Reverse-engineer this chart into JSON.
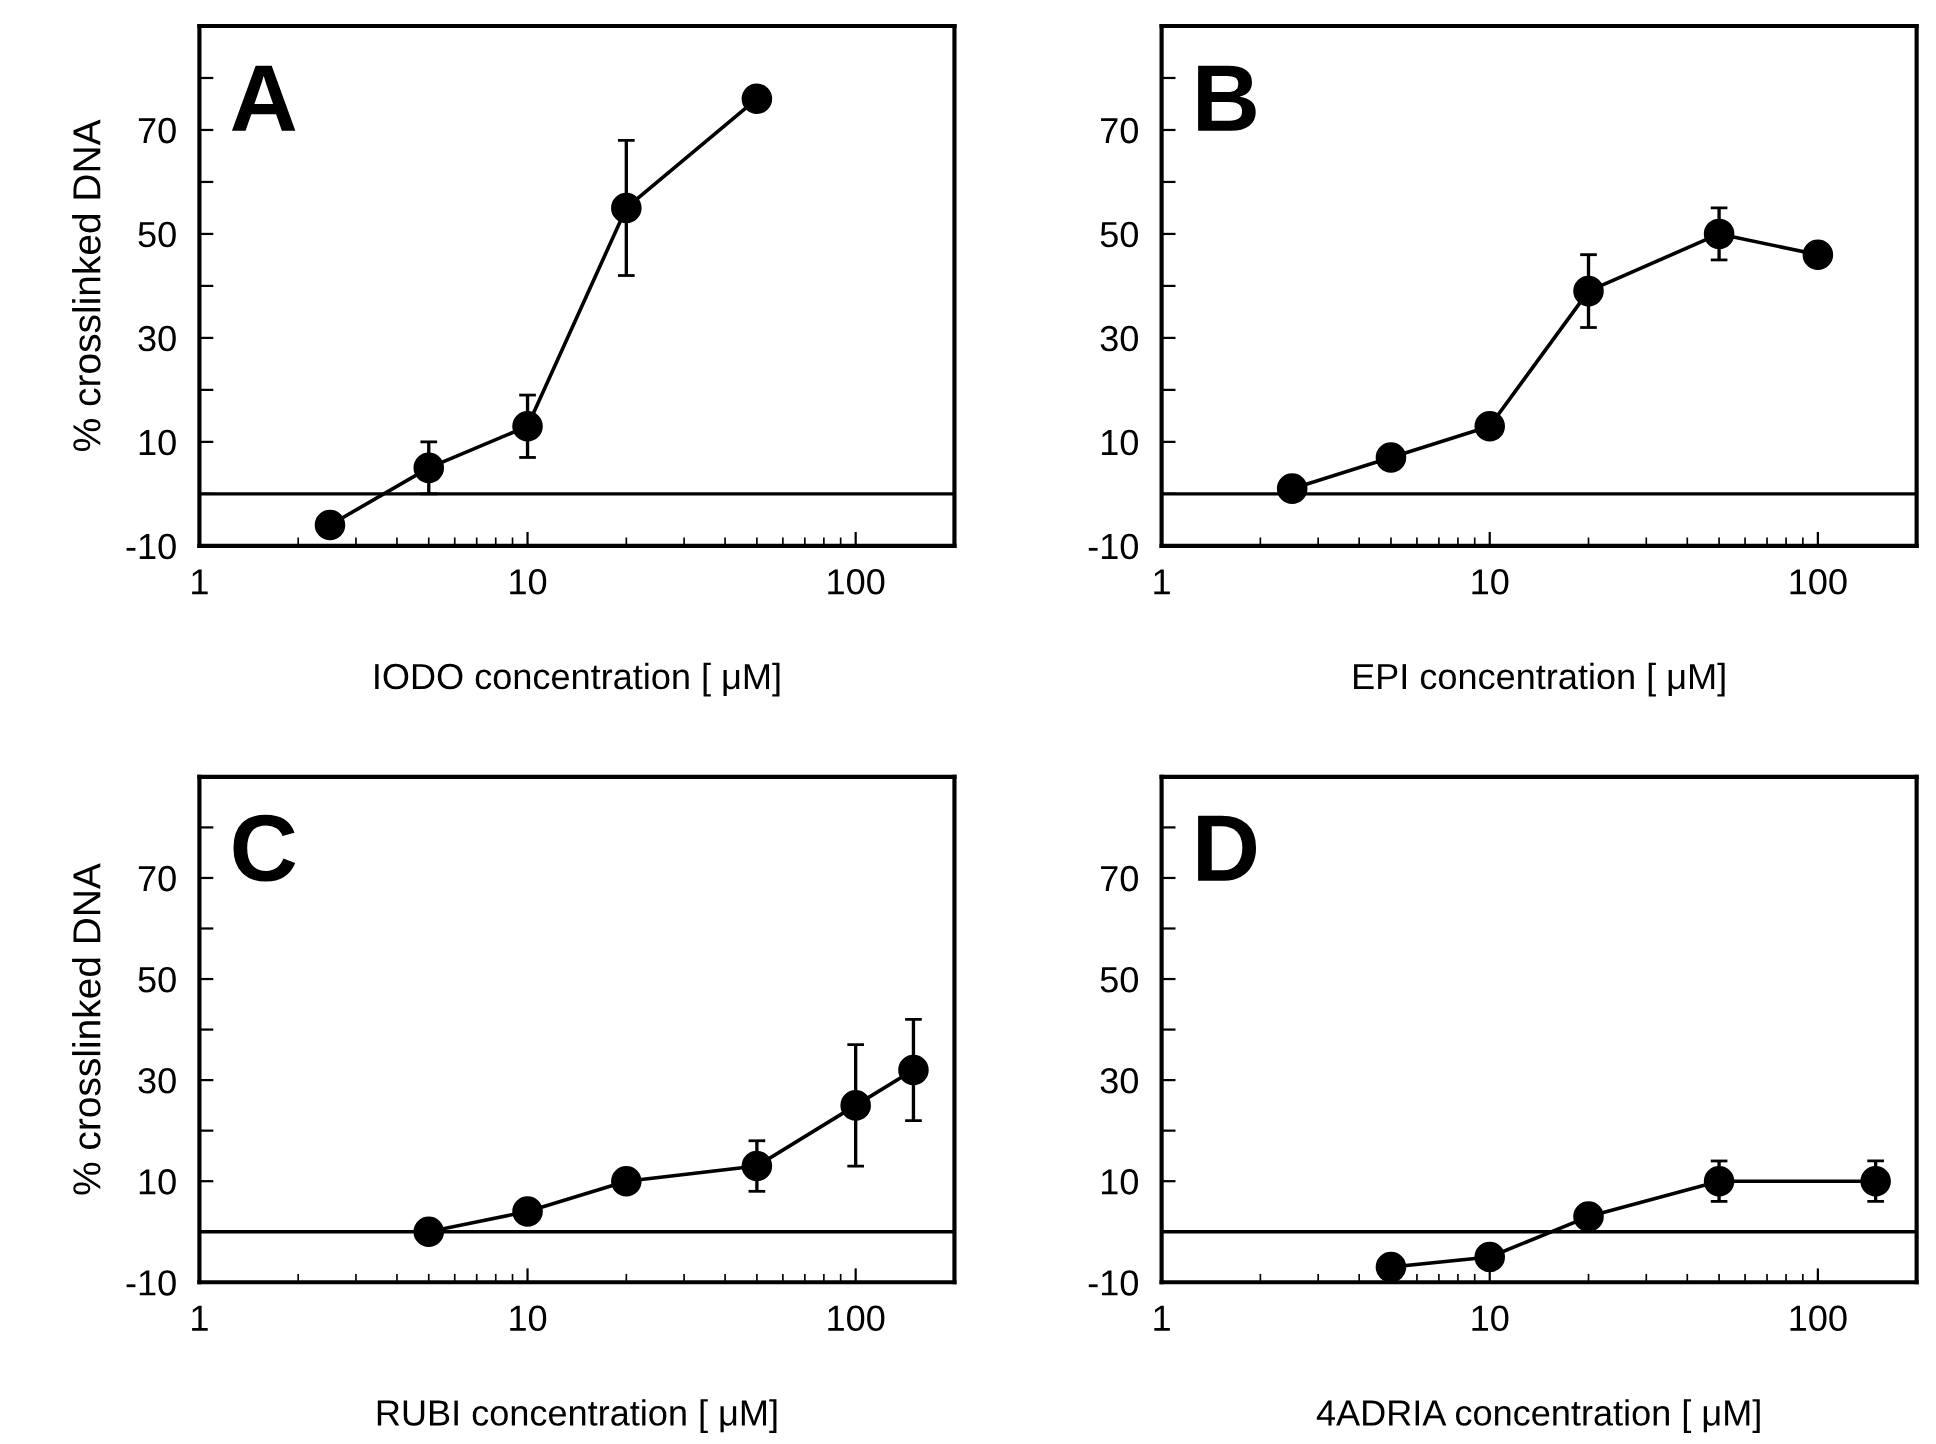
{
  "chart_data": [
    {
      "type": "line",
      "annotations": [
        "A"
      ],
      "xlabel": "IODO concentration [ μM]",
      "ylabel": "% crosslinked DNA",
      "log": "x",
      "xlim": [
        1,
        200
      ],
      "xticks": [
        1,
        10,
        100
      ],
      "ylim": [
        -10,
        90
      ],
      "yticks": [
        -10,
        {
          "value": 0,
          "label": null
        },
        10,
        {
          "value": 20,
          "label": null
        },
        30,
        {
          "value": 40,
          "label": null
        },
        50,
        {
          "value": 60,
          "label": null
        },
        70,
        {
          "value": 80,
          "label": null
        }
      ],
      "marker": "circle",
      "line_style": "solid",
      "grid": false,
      "ref_lines": [
        {
          "axis": "y",
          "value": 0,
          "color": "#000000"
        }
      ],
      "series": [
        {
          "color": "#000000",
          "x": [
            2.5,
            5,
            10,
            20,
            50
          ],
          "values": [
            -6,
            5,
            13,
            55,
            76
          ],
          "errors": [
            null,
            5,
            6,
            13,
            null
          ]
        }
      ]
    },
    {
      "type": "line",
      "annotations": [
        "B"
      ],
      "xlabel": "EPI concentration [ μM]",
      "log": "x",
      "xlim": [
        1,
        200
      ],
      "xticks": [
        1,
        10,
        100
      ],
      "ylim": [
        -10,
        90
      ],
      "yticks": [
        -10,
        {
          "value": 0,
          "label": null
        },
        10,
        {
          "value": 20,
          "label": null
        },
        30,
        {
          "value": 40,
          "label": null
        },
        50,
        {
          "value": 60,
          "label": null
        },
        70,
        {
          "value": 80,
          "label": null
        }
      ],
      "marker": "circle",
      "line_style": "solid",
      "grid": false,
      "ref_lines": [
        {
          "axis": "y",
          "value": 0,
          "color": "#000000"
        }
      ],
      "series": [
        {
          "color": "#000000",
          "x": [
            2.5,
            5,
            10,
            20,
            50,
            100
          ],
          "values": [
            1,
            7,
            13,
            39,
            50,
            46
          ],
          "errors": [
            null,
            null,
            null,
            7,
            5,
            null
          ]
        }
      ]
    },
    {
      "type": "line",
      "annotations": [
        "C"
      ],
      "xlabel": "RUBI concentration [ μM]",
      "ylabel": "% crosslinked DNA",
      "log": "x",
      "xlim": [
        1,
        200
      ],
      "xticks": [
        1,
        10,
        100
      ],
      "ylim": [
        -10,
        90
      ],
      "yticks": [
        -10,
        {
          "value": 0,
          "label": null
        },
        10,
        {
          "value": 20,
          "label": null
        },
        30,
        {
          "value": 40,
          "label": null
        },
        50,
        {
          "value": 60,
          "label": null
        },
        70,
        {
          "value": 80,
          "label": null
        }
      ],
      "marker": "circle",
      "line_style": "solid",
      "grid": false,
      "ref_lines": [
        {
          "axis": "y",
          "value": 0,
          "color": "#000000"
        }
      ],
      "series": [
        {
          "color": "#000000",
          "x": [
            5,
            10,
            20,
            50,
            100,
            150
          ],
          "values": [
            0,
            4,
            10,
            13,
            25,
            32
          ],
          "errors": [
            null,
            null,
            null,
            5,
            12,
            10
          ]
        }
      ]
    },
    {
      "type": "line",
      "annotations": [
        "D"
      ],
      "xlabel": "4ADRIA concentration [ μM]",
      "log": "x",
      "xlim": [
        1,
        200
      ],
      "xticks": [
        1,
        10,
        100
      ],
      "ylim": [
        -10,
        90
      ],
      "yticks": [
        -10,
        {
          "value": 0,
          "label": null
        },
        10,
        {
          "value": 20,
          "label": null
        },
        30,
        {
          "value": 40,
          "label": null
        },
        50,
        {
          "value": 60,
          "label": null
        },
        70,
        {
          "value": 80,
          "label": null
        }
      ],
      "marker": "circle",
      "line_style": "solid",
      "grid": false,
      "ref_lines": [
        {
          "axis": "y",
          "value": 0,
          "color": "#000000"
        }
      ],
      "series": [
        {
          "color": "#000000",
          "x": [
            5,
            10,
            20,
            50,
            150
          ],
          "values": [
            -7,
            -5,
            3,
            10,
            10
          ],
          "errors": [
            null,
            null,
            null,
            4,
            4
          ]
        }
      ]
    }
  ]
}
